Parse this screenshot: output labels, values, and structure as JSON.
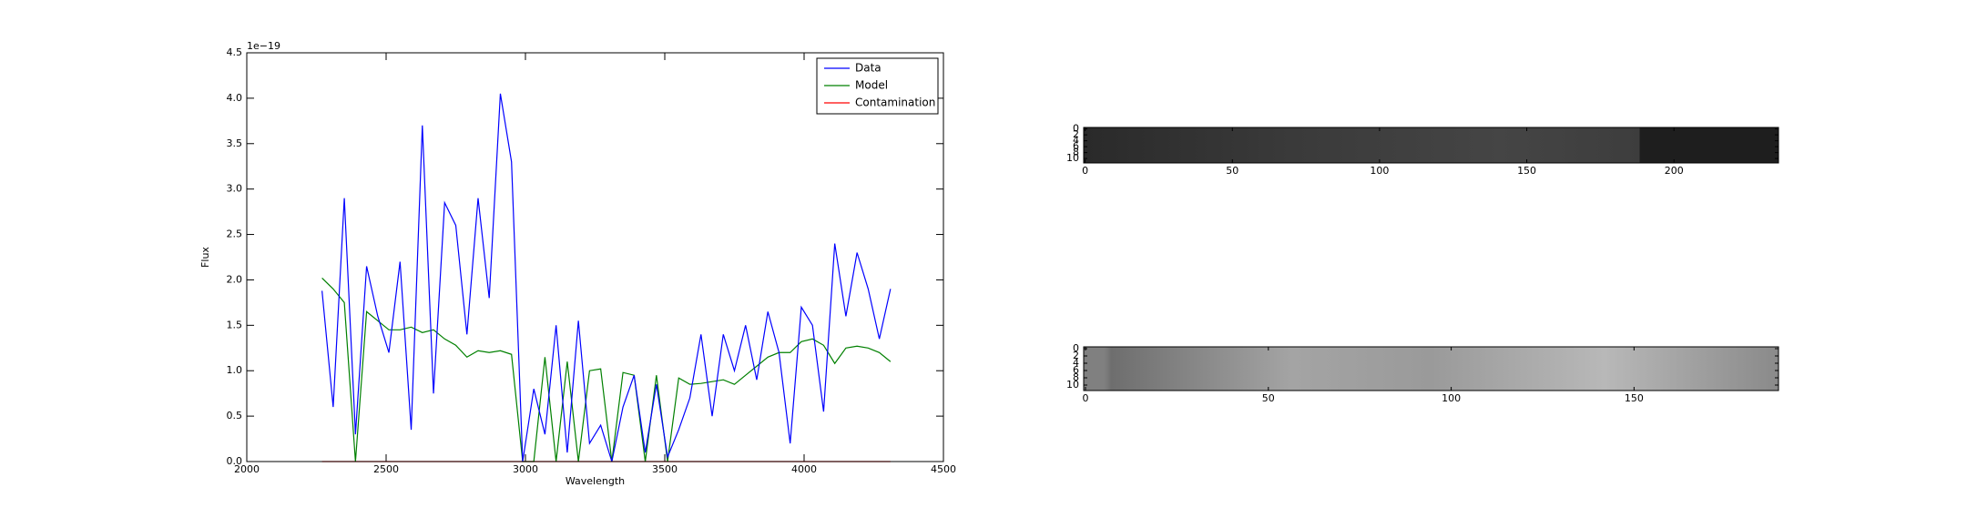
{
  "chart_data": [
    {
      "type": "line",
      "xlabel": "Wavelength",
      "ylabel": "Flux",
      "y_offset_label": "1e−19",
      "x": [
        2270,
        2310,
        2350,
        2390,
        2430,
        2470,
        2510,
        2550,
        2590,
        2630,
        2670,
        2710,
        2750,
        2790,
        2830,
        2870,
        2910,
        2950,
        2990,
        3030,
        3070,
        3110,
        3150,
        3190,
        3230,
        3270,
        3310,
        3350,
        3390,
        3430,
        3470,
        3510,
        3550,
        3590,
        3630,
        3670,
        3710,
        3750,
        3790,
        3830,
        3870,
        3910,
        3950,
        3990,
        4030,
        4070,
        4110,
        4150,
        4190,
        4230,
        4270,
        4310
      ],
      "series": [
        {
          "name": "Data",
          "color": "#0000ff",
          "values": [
            1.88,
            0.6,
            2.9,
            0.3,
            2.15,
            1.6,
            1.2,
            2.2,
            0.35,
            3.7,
            0.75,
            2.85,
            2.6,
            1.4,
            2.9,
            1.8,
            4.05,
            3.3,
            0.0,
            0.8,
            0.3,
            1.5,
            0.1,
            1.55,
            0.2,
            0.4,
            0.0,
            0.6,
            0.95,
            0.1,
            0.85,
            0.05,
            0.35,
            0.7,
            1.4,
            0.5,
            1.4,
            1.0,
            1.5,
            0.9,
            1.65,
            1.2,
            0.2,
            1.7,
            1.5,
            0.55,
            2.4,
            1.6,
            2.3,
            1.9,
            1.35,
            1.9
          ]
        },
        {
          "name": "Model",
          "color": "#008000",
          "values": [
            2.02,
            1.9,
            1.75,
            0.0,
            1.65,
            1.55,
            1.45,
            1.45,
            1.48,
            1.42,
            1.45,
            1.35,
            1.28,
            1.15,
            1.22,
            1.2,
            1.22,
            1.18,
            0.0,
            0.0,
            1.15,
            0.0,
            1.1,
            0.0,
            1.0,
            1.02,
            0.0,
            0.98,
            0.95,
            0.0,
            0.95,
            0.0,
            0.92,
            0.85,
            0.86,
            0.88,
            0.9,
            0.85,
            0.95,
            1.05,
            1.15,
            1.2,
            1.2,
            1.32,
            1.35,
            1.28,
            1.08,
            1.25,
            1.27,
            1.25,
            1.2,
            1.1
          ]
        },
        {
          "name": "Contamination",
          "color": "#ff0000",
          "values": [
            0,
            0,
            0,
            0,
            0,
            0,
            0,
            0,
            0,
            0,
            0,
            0,
            0,
            0,
            0,
            0,
            0,
            0,
            0,
            0,
            0,
            0,
            0,
            0,
            0,
            0,
            0,
            0,
            0,
            0,
            0,
            0,
            0,
            0,
            0,
            0,
            0,
            0,
            0,
            0,
            0,
            0,
            0,
            0,
            0,
            0,
            0,
            0,
            0,
            0,
            0,
            0
          ]
        }
      ],
      "xlim": [
        2000,
        4500
      ],
      "xticks": [
        2000,
        2500,
        3000,
        3500,
        4000,
        4500
      ],
      "ylim": [
        0,
        4.5
      ],
      "yticks": [
        {
          "value": 0,
          "label": "0.0"
        },
        0.5,
        {
          "value": 1,
          "label": "1.0"
        },
        1.5,
        {
          "value": 2,
          "label": "2.0"
        },
        2.5,
        {
          "value": 3,
          "label": "3.0"
        },
        3.5,
        {
          "value": 4,
          "label": "4.0"
        },
        4.5
      ],
      "legend": "upper right",
      "grid": false
    },
    {
      "type": "image",
      "xlim": [
        -0.5,
        235.5
      ],
      "xticks": [
        0,
        50,
        100,
        150,
        200
      ],
      "ylim": [
        11.5,
        -0.5
      ],
      "yticks": [
        0,
        2,
        4,
        6,
        8,
        10
      ]
    },
    {
      "type": "image",
      "xlim": [
        -0.5,
        189.5
      ],
      "xticks": [
        0,
        50,
        100,
        150
      ],
      "ylim": [
        11.5,
        -0.5
      ],
      "yticks": [
        0,
        2,
        4,
        6,
        8,
        10
      ]
    }
  ]
}
